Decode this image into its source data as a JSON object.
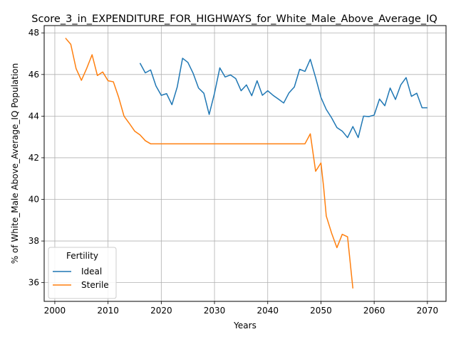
{
  "chart_data": {
    "type": "line",
    "title": "Score_3_in_EXPENDITURE_FOR_HIGHWAYS_for_White_Male_Above_Average_IQ",
    "xlabel": "Years",
    "ylabel": "% of White_Male Above_Average_IQ Population",
    "xlim": [
      1998,
      2073.5
    ],
    "ylim": [
      35.1,
      48.35
    ],
    "x_ticks": [
      2000,
      2010,
      2020,
      2030,
      2040,
      2050,
      2060,
      2070
    ],
    "y_ticks": [
      36,
      38,
      40,
      42,
      44,
      46,
      48
    ],
    "grid": true,
    "legend": {
      "title": "Fertility",
      "placement": "lower-left"
    },
    "series": [
      {
        "name": "Ideal",
        "color": "#1f77b4",
        "points": [
          [
            2016,
            46.55
          ],
          [
            2017,
            46.08
          ],
          [
            2018,
            46.22
          ],
          [
            2019,
            45.45
          ],
          [
            2020,
            45.0
          ],
          [
            2021,
            45.08
          ],
          [
            2022,
            44.55
          ],
          [
            2023,
            45.4
          ],
          [
            2024,
            46.78
          ],
          [
            2025,
            46.58
          ],
          [
            2026,
            46.05
          ],
          [
            2027,
            45.35
          ],
          [
            2028,
            45.1
          ],
          [
            2029,
            44.08
          ],
          [
            2030,
            45.1
          ],
          [
            2031,
            46.32
          ],
          [
            2032,
            45.88
          ],
          [
            2033,
            45.98
          ],
          [
            2034,
            45.8
          ],
          [
            2035,
            45.22
          ],
          [
            2036,
            45.5
          ],
          [
            2037,
            44.98
          ],
          [
            2038,
            45.7
          ],
          [
            2039,
            45.0
          ],
          [
            2040,
            45.22
          ],
          [
            2041,
            45.0
          ],
          [
            2042,
            44.82
          ],
          [
            2043,
            44.63
          ],
          [
            2044,
            45.12
          ],
          [
            2045,
            45.4
          ],
          [
            2046,
            46.25
          ],
          [
            2047,
            46.15
          ],
          [
            2048,
            46.73
          ],
          [
            2049,
            45.85
          ],
          [
            2050,
            44.9
          ],
          [
            2051,
            44.32
          ],
          [
            2052,
            43.92
          ],
          [
            2053,
            43.45
          ],
          [
            2054,
            43.28
          ],
          [
            2055,
            42.97
          ],
          [
            2056,
            43.5
          ],
          [
            2057,
            42.97
          ],
          [
            2058,
            44.0
          ],
          [
            2059,
            43.98
          ],
          [
            2060,
            44.05
          ],
          [
            2061,
            44.82
          ],
          [
            2062,
            44.5
          ],
          [
            2063,
            45.35
          ],
          [
            2064,
            44.8
          ],
          [
            2065,
            45.5
          ],
          [
            2066,
            45.85
          ],
          [
            2067,
            44.95
          ],
          [
            2068,
            45.1
          ],
          [
            2069,
            44.4
          ],
          [
            2070,
            44.4
          ]
        ]
      },
      {
        "name": "Sterile",
        "color": "#ff7f0e",
        "points": [
          [
            2002,
            47.75
          ],
          [
            2003,
            47.45
          ],
          [
            2004,
            46.28
          ],
          [
            2005,
            45.72
          ],
          [
            2006,
            46.3
          ],
          [
            2007,
            46.95
          ],
          [
            2008,
            45.95
          ],
          [
            2009,
            46.12
          ],
          [
            2010,
            45.7
          ],
          [
            2011,
            45.65
          ],
          [
            2012,
            44.9
          ],
          [
            2013,
            44.0
          ],
          [
            2014,
            43.65
          ],
          [
            2015,
            43.28
          ],
          [
            2016,
            43.1
          ],
          [
            2017,
            42.82
          ],
          [
            2018,
            42.67
          ],
          [
            2019,
            42.67
          ],
          [
            2020,
            42.67
          ],
          [
            2025,
            42.67
          ],
          [
            2030,
            42.67
          ],
          [
            2035,
            42.67
          ],
          [
            2040,
            42.67
          ],
          [
            2045,
            42.67
          ],
          [
            2047,
            42.67
          ],
          [
            2048,
            43.15
          ],
          [
            2049,
            41.35
          ],
          [
            2050,
            41.75
          ],
          [
            2050.5,
            40.6
          ],
          [
            2051,
            39.2
          ],
          [
            2052,
            38.38
          ],
          [
            2053,
            37.68
          ],
          [
            2054,
            38.32
          ],
          [
            2055,
            38.2
          ],
          [
            2056,
            35.72
          ]
        ]
      }
    ]
  }
}
